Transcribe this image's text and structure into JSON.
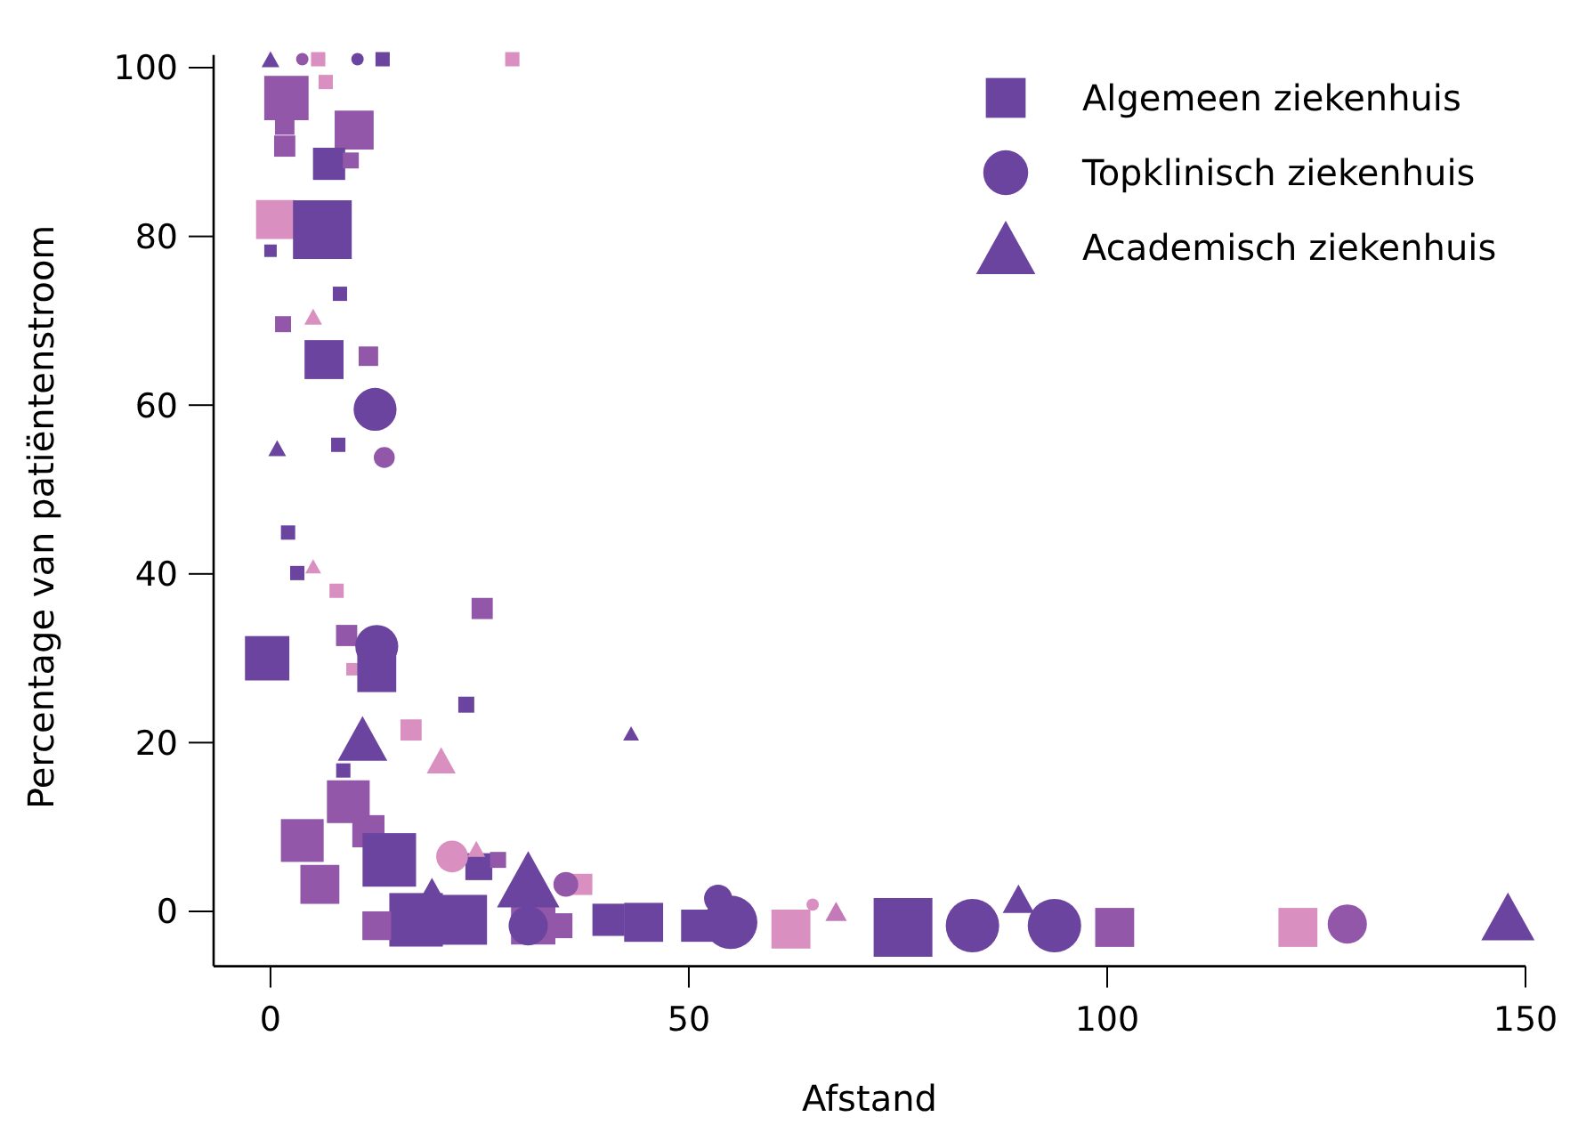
{
  "chart_data": {
    "type": "bubble",
    "xlabel": "Afstand",
    "ylabel": "Percentage van patiëntenstroom",
    "xlim": [
      -6.8,
      150
    ],
    "xticks": [
      0,
      50,
      100,
      150
    ],
    "ylim": [
      -6.5,
      101.5
    ],
    "yticks": [
      0,
      20,
      40,
      60,
      80,
      100
    ],
    "grid": false,
    "legend": "top right",
    "series": [
      {
        "name": "Algemeen ziekenhuis",
        "marker": "square",
        "color": "#6b44a0",
        "x": [
          5.7,
          13.4,
          28.9,
          6.6,
          1.9,
          1.7,
          1.7,
          10,
          7,
          9.6,
          0.6,
          6.2,
          0,
          8.3,
          1.5,
          6.4,
          11.7,
          8.1,
          2.1,
          3.2,
          7.9,
          25.3,
          9.1,
          -0.4,
          9.8,
          12.7,
          23.4,
          16.8,
          8.7,
          9.3,
          3.8,
          5.9,
          11.7,
          14.2,
          17.4,
          24.9,
          27.2,
          12.7,
          22.9,
          31.4,
          37.2,
          34.6,
          40.4,
          44.6,
          51,
          62.2,
          75.6,
          100.9,
          122.8
        ],
        "values": [
          101,
          101,
          101,
          98.3,
          96.4,
          93.2,
          90.7,
          92.6,
          88.6,
          89,
          82,
          80.8,
          78.3,
          73.2,
          69.6,
          65.4,
          65.8,
          55.3,
          44.9,
          40.1,
          38,
          35.9,
          32.7,
          30,
          28.7,
          28.3,
          24.5,
          21.5,
          16.7,
          13,
          8.4,
          3.2,
          9.5,
          6.1,
          -1,
          5.3,
          6.1,
          -1.7,
          -1,
          -1.3,
          3.2,
          -1.7,
          -1,
          -1.3,
          -1.7,
          -2.1,
          -1.9,
          -1.9,
          -1.9
        ],
        "sizes": [
          0.059,
          0.059,
          0.059,
          0.059,
          0.57,
          0.11,
          0.13,
          0.44,
          0.3,
          0.074,
          0.44,
          1,
          0.045,
          0.059,
          0.074,
          0.44,
          0.11,
          0.059,
          0.059,
          0.059,
          0.059,
          0.13,
          0.13,
          0.57,
          0.045,
          0.44,
          0.074,
          0.13,
          0.059,
          0.53,
          0.53,
          0.44,
          0.3,
          0.83,
          0.83,
          0.21,
          0.074,
          0.24,
          0.72,
          0.57,
          0.13,
          0.18,
          0.3,
          0.44,
          0.3,
          0.44,
          1,
          0.44,
          0.44
        ],
        "colors": [
          "#d990c0",
          "#6b44a0",
          "#d990c0",
          "#d990c0",
          "#9257a8",
          "#9257a8",
          "#9257a8",
          "#9257a8",
          "#6b44a0",
          "#9257a8",
          "#d990c0",
          "#6b44a0",
          "#6b44a0",
          "#6b44a0",
          "#9257a8",
          "#6b44a0",
          "#9257a8",
          "#6b44a0",
          "#6b44a0",
          "#6b44a0",
          "#d990c0",
          "#9257a8",
          "#9257a8",
          "#6b44a0",
          "#d990c0",
          "#6b44a0",
          "#6b44a0",
          "#d990c0",
          "#6b44a0",
          "#9257a8",
          "#9257a8",
          "#9257a8",
          "#9257a8",
          "#6b44a0",
          "#6b44a0",
          "#6b44a0",
          "#9257a8",
          "#9257a8",
          "#6b44a0",
          "#9257a8",
          "#d990c0",
          "#9257a8",
          "#6b44a0",
          "#6b44a0",
          "#6b44a0",
          "#d990c0",
          "#6b44a0",
          "#9257a8",
          "#d990c0"
        ]
      },
      {
        "name": "Topklinisch ziekenhuis",
        "marker": "circle",
        "color": "#6b44a0",
        "x": [
          3.8,
          10.4,
          12.5,
          13.6,
          12.7,
          21.7,
          30.8,
          35.3,
          53.5,
          55,
          64.8,
          83.9,
          93.7,
          128.7
        ],
        "values": [
          101,
          101,
          59.5,
          53.8,
          31.4,
          6.5,
          -1.7,
          3.2,
          1.5,
          -1.3,
          0.8,
          -1.7,
          -1.7,
          -1.5
        ],
        "sizes": [
          0.035,
          0.035,
          0.42,
          0.1,
          0.42,
          0.23,
          0.35,
          0.14,
          0.18,
          0.65,
          0.035,
          0.65,
          0.65,
          0.35
        ],
        "colors": [
          "#9257a8",
          "#6b44a0",
          "#6b44a0",
          "#9257a8",
          "#6b44a0",
          "#d990c0",
          "#6b44a0",
          "#9257a8",
          "#6b44a0",
          "#6b44a0",
          "#d990c0",
          "#6b44a0",
          "#6b44a0",
          "#9257a8"
        ]
      },
      {
        "name": "Academisch ziekenhuis",
        "marker": "triangle",
        "color": "#6b44a0",
        "x": [
          0,
          0.8,
          5.1,
          5.1,
          11,
          20.4,
          43.1,
          24.6,
          30.8,
          19.3,
          67.6,
          89.4,
          147.9
        ],
        "values": [
          101,
          54.9,
          70.5,
          40.9,
          20.5,
          17.9,
          21.1,
          7.4,
          3.8,
          1.9,
          0,
          1.5,
          -0.6
        ],
        "sizes": [
          0.041,
          0.041,
          0.041,
          0.033,
          0.32,
          0.11,
          0.033,
          0.041,
          0.51,
          0.2,
          0.06,
          0.13,
          0.37
        ],
        "colors": [
          "#6b44a0",
          "#6b44a0",
          "#d990c0",
          "#d990c0",
          "#6b44a0",
          "#d990c0",
          "#6b44a0",
          "#d990c0",
          "#6b44a0",
          "#6b44a0",
          "#c47ab8",
          "#6b44a0",
          "#6b44a0"
        ]
      }
    ]
  }
}
